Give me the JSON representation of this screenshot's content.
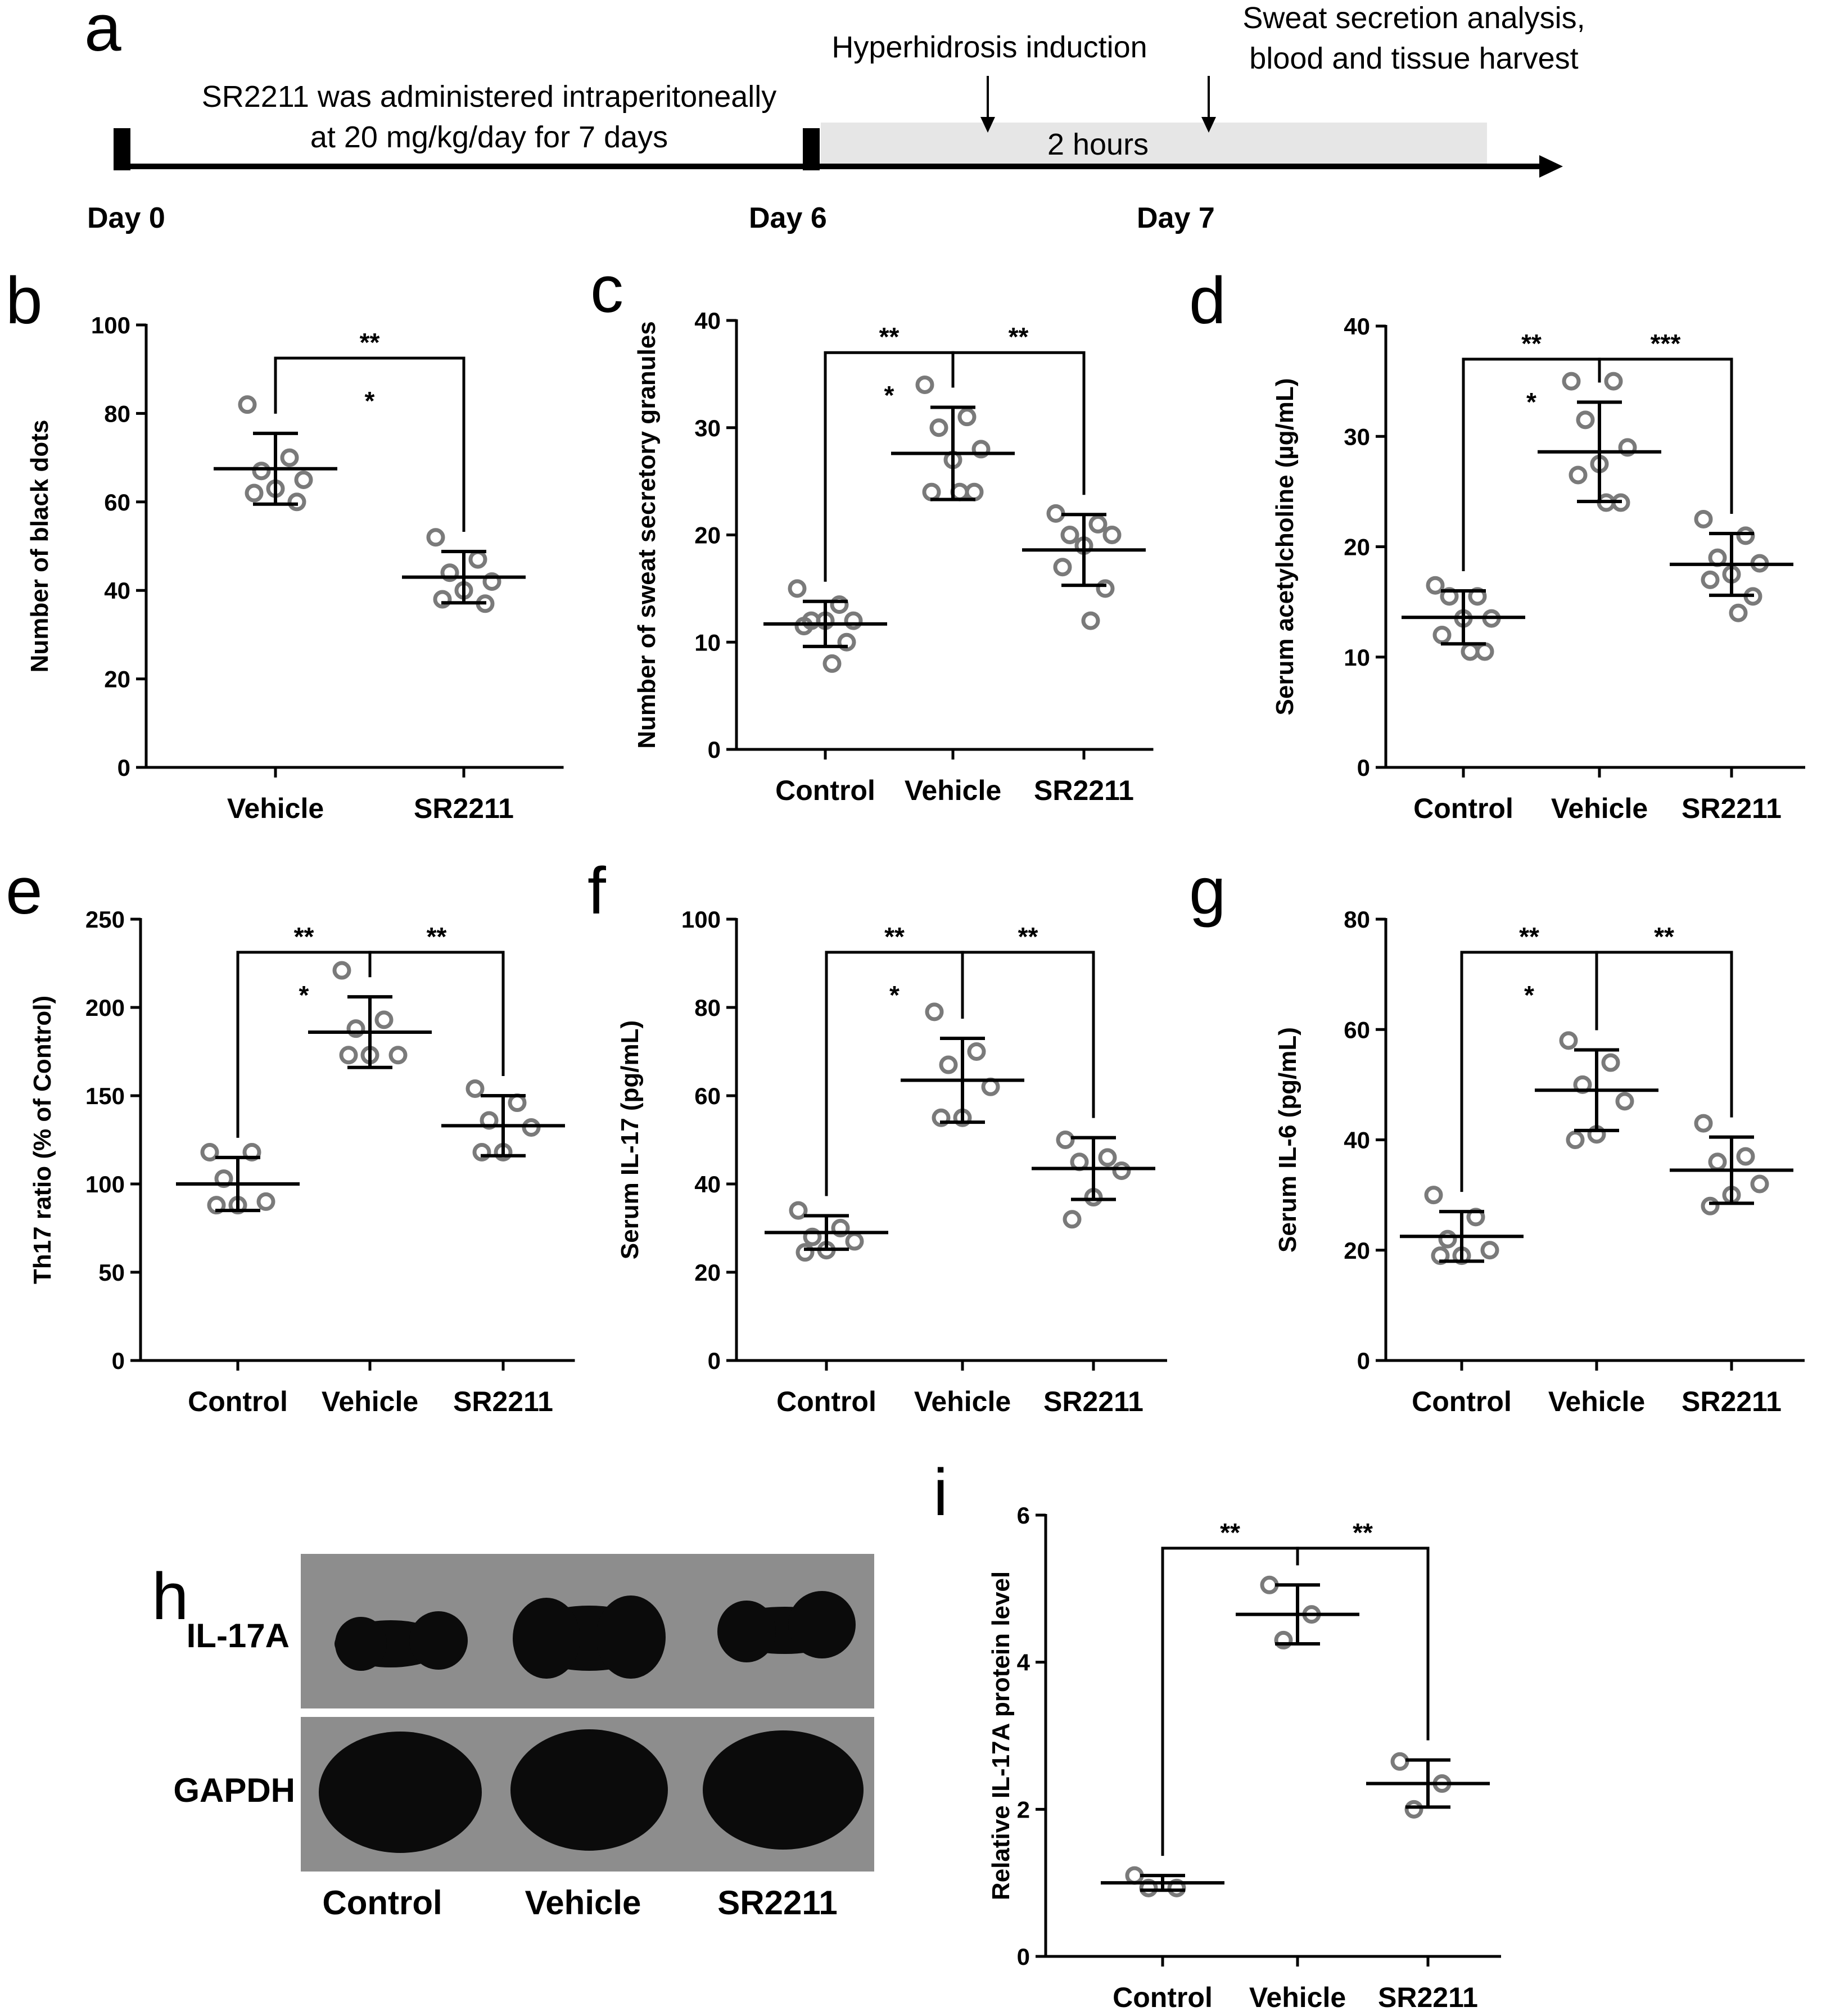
{
  "timeline": {
    "letter": "a",
    "admin_line1": "SR2211 was administered intraperitoneally",
    "admin_line2": "at 20 mg/kg/day for 7 days",
    "induction": "Hyperhidrosis induction",
    "analysis_line1": "Sweat secretion analysis,",
    "analysis_line2": "blood and tissue harvest",
    "duration": "2 hours",
    "days": [
      "Day 0",
      "Day 6",
      "Day 7"
    ],
    "colors": {
      "shade": "#e6e6e6",
      "line": "#000000"
    }
  },
  "blot": {
    "letter": "h",
    "bands": [
      "IL-17A",
      "GAPDH"
    ],
    "lanes": [
      "Control",
      "Vehicle",
      "SR2211"
    ],
    "colors": {
      "background": "#8d8d8d",
      "band": "#0b0b0b"
    }
  },
  "colors": {
    "marker": "#7a7a7a",
    "axis": "#000000"
  },
  "chart_data": [
    {
      "id": "b",
      "letter": "b",
      "type": "scatter",
      "categories": [
        "Vehicle",
        "SR2211"
      ],
      "ylabel": "Number of black dots",
      "ylim": [
        0,
        100
      ],
      "yticks": [
        "0",
        "20",
        "40",
        "60",
        "80",
        "100"
      ],
      "mean": [
        67.5,
        43
      ],
      "sd": [
        8,
        5.8
      ],
      "points": [
        [
          82,
          70,
          67,
          65,
          63,
          62,
          60
        ],
        [
          52,
          47,
          44,
          42,
          40,
          38,
          37
        ]
      ],
      "brackets": [
        {
          "from": 0,
          "to": 1,
          "top": "**",
          "under": "*"
        }
      ]
    },
    {
      "id": "c",
      "letter": "c",
      "type": "scatter",
      "categories": [
        "Control",
        "Vehicle",
        "SR2211"
      ],
      "ylabel": "Number of sweat secretory granules",
      "ylim": [
        0,
        40
      ],
      "yticks": [
        "0",
        "10",
        "20",
        "30",
        "40"
      ],
      "mean": [
        11.7,
        27.6,
        18.6
      ],
      "sd": [
        2.1,
        4.3,
        3.3
      ],
      "points": [
        [
          15,
          13.5,
          12,
          12,
          12,
          11.5,
          10,
          8
        ],
        [
          34,
          31,
          30,
          28,
          27,
          24,
          24,
          24
        ],
        [
          22,
          21,
          20,
          20,
          19,
          17,
          15,
          12
        ]
      ],
      "brackets": [
        {
          "from": 0,
          "to": 1,
          "top": "**",
          "under": "*"
        },
        {
          "from": 1,
          "to": 2,
          "top": "**",
          "under": ""
        }
      ]
    },
    {
      "id": "d",
      "letter": "d",
      "type": "scatter",
      "categories": [
        "Control",
        "Vehicle",
        "SR2211"
      ],
      "ylabel": "Serum acetylcholine (µg/mL)",
      "ylim": [
        0,
        40
      ],
      "yticks": [
        "0",
        "10",
        "20",
        "30",
        "40"
      ],
      "mean": [
        13.6,
        28.6,
        18.4
      ],
      "sd": [
        2.4,
        4.5,
        2.8
      ],
      "points": [
        [
          16.5,
          15.5,
          15.5,
          13.5,
          13.5,
          12,
          10.5,
          10.5
        ],
        [
          35,
          35,
          31.5,
          29,
          27.5,
          26.5,
          24,
          24
        ],
        [
          22.5,
          21,
          19,
          18.5,
          17.5,
          17,
          15.5,
          14
        ]
      ],
      "brackets": [
        {
          "from": 0,
          "to": 1,
          "top": "**",
          "under": "*"
        },
        {
          "from": 1,
          "to": 2,
          "top": "***",
          "under": ""
        }
      ]
    },
    {
      "id": "e",
      "letter": "e",
      "type": "scatter",
      "categories": [
        "Control",
        "Vehicle",
        "SR2211"
      ],
      "ylabel": "Th17 ratio (% of Control)",
      "ylim": [
        0,
        250
      ],
      "yticks": [
        "0",
        "50",
        "100",
        "150",
        "200",
        "250"
      ],
      "mean": [
        100,
        186,
        133
      ],
      "sd": [
        15,
        20,
        17
      ],
      "points": [
        [
          118,
          118,
          103,
          90,
          88,
          88
        ],
        [
          221,
          193,
          188,
          173,
          173,
          173
        ],
        [
          154,
          146,
          136,
          132,
          118,
          118
        ]
      ],
      "brackets": [
        {
          "from": 0,
          "to": 1,
          "top": "**",
          "under": "*"
        },
        {
          "from": 1,
          "to": 2,
          "top": "**",
          "under": ""
        }
      ]
    },
    {
      "id": "f",
      "letter": "f",
      "type": "scatter",
      "categories": [
        "Control",
        "Vehicle",
        "SR2211"
      ],
      "ylabel": "Serum IL-17 (pg/mL)",
      "ylim": [
        0,
        100
      ],
      "yticks": [
        "0",
        "20",
        "40",
        "60",
        "80",
        "100"
      ],
      "mean": [
        29,
        63.5,
        43.5
      ],
      "sd": [
        3.8,
        9.5,
        7
      ],
      "points": [
        [
          34,
          30,
          28,
          27,
          25,
          24.5
        ],
        [
          79,
          70,
          67,
          62,
          55,
          55
        ],
        [
          50,
          46,
          45,
          43,
          37,
          32
        ]
      ],
      "brackets": [
        {
          "from": 0,
          "to": 1,
          "top": "**",
          "under": "*"
        },
        {
          "from": 1,
          "to": 2,
          "top": "**",
          "under": ""
        }
      ]
    },
    {
      "id": "g",
      "letter": "g",
      "type": "scatter",
      "categories": [
        "Control",
        "Vehicle",
        "SR2211"
      ],
      "ylabel": "Serum IL-6 (pg/mL)",
      "ylim": [
        0,
        80
      ],
      "yticks": [
        "0",
        "20",
        "40",
        "60",
        "80"
      ],
      "mean": [
        22.5,
        49,
        34.5
      ],
      "sd": [
        4.5,
        7.3,
        6
      ],
      "points": [
        [
          30,
          26,
          22,
          20,
          19,
          19
        ],
        [
          58,
          54,
          50,
          47,
          41,
          40
        ],
        [
          43,
          37,
          36,
          32,
          30,
          28
        ]
      ],
      "brackets": [
        {
          "from": 0,
          "to": 1,
          "top": "**",
          "under": "*"
        },
        {
          "from": 1,
          "to": 2,
          "top": "**",
          "under": ""
        }
      ]
    },
    {
      "id": "i",
      "letter": "i",
      "type": "scatter",
      "categories": [
        "Control",
        "Vehicle",
        "SR2211"
      ],
      "ylabel": "Relative IL-17A protein level",
      "ylim": [
        0,
        6
      ],
      "yticks": [
        "0",
        "2",
        "4",
        "6"
      ],
      "mean": [
        1.0,
        4.65,
        2.35
      ],
      "sd": [
        0.1,
        0.4,
        0.32
      ],
      "points": [
        [
          1.1,
          0.93,
          0.93
        ],
        [
          5.05,
          4.65,
          4.3
        ],
        [
          2.65,
          2.35,
          2.0
        ]
      ],
      "brackets": [
        {
          "from": 0,
          "to": 1,
          "top": "**",
          "under": ""
        },
        {
          "from": 1,
          "to": 2,
          "top": "**",
          "under": ""
        }
      ]
    }
  ]
}
